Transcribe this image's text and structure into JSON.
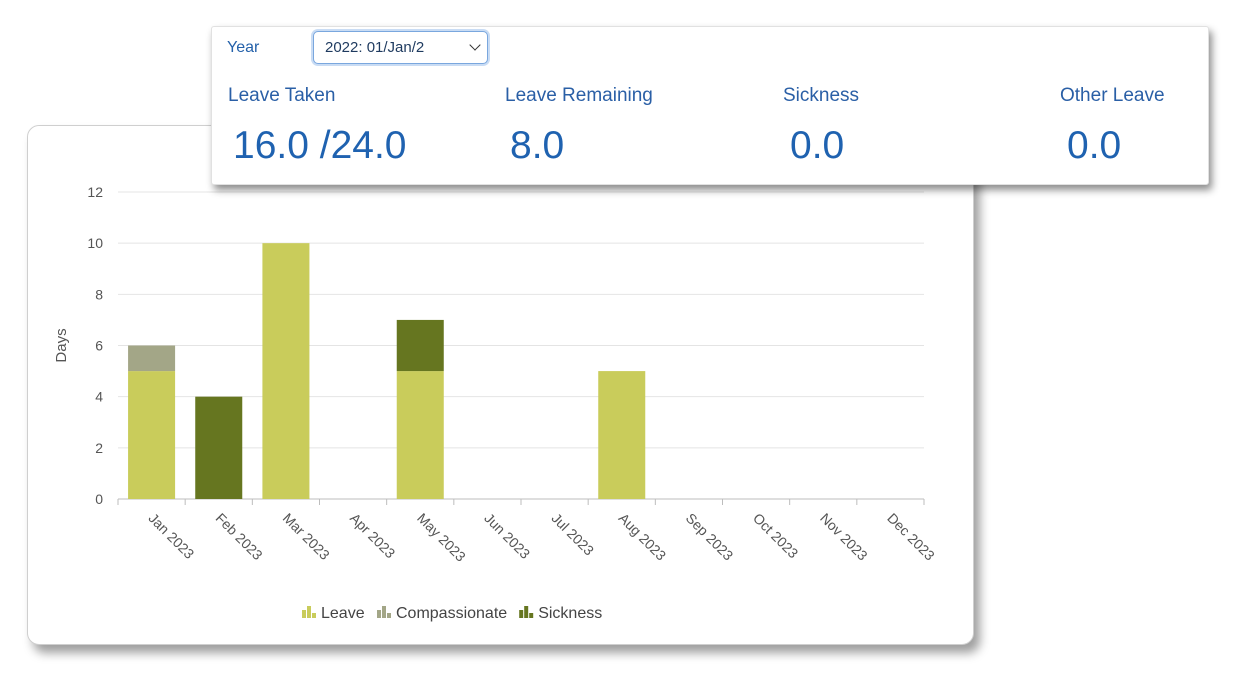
{
  "summary": {
    "year_label": "Year",
    "year_select_value": "2022: 01/Jan/2",
    "stats": [
      {
        "label": "Leave Taken",
        "value": "16.0 /24.0"
      },
      {
        "label": "Leave Remaining",
        "value": "8.0"
      },
      {
        "label": "Sickness",
        "value": "0.0"
      },
      {
        "label": "Other Leave",
        "value": "0.0"
      }
    ]
  },
  "chart_data": {
    "type": "bar",
    "stacked": true,
    "categories": [
      "Jan 2023",
      "Feb 2023",
      "Mar 2023",
      "Apr 2023",
      "May 2023",
      "Jun 2023",
      "Jul 2023",
      "Aug 2023",
      "Sep 2023",
      "Oct 2023",
      "Nov 2023",
      "Dec 2023"
    ],
    "series": [
      {
        "name": "Leave",
        "color": "#c9cc5b",
        "values": [
          5,
          0,
          10,
          0,
          5,
          0,
          0,
          5,
          0,
          0,
          0,
          0
        ]
      },
      {
        "name": "Compassionate",
        "color": "#a3a687",
        "values": [
          1,
          0,
          0,
          0,
          0,
          0,
          0,
          0,
          0,
          0,
          0,
          0
        ]
      },
      {
        "name": "Sickness",
        "color": "#667620",
        "values": [
          0,
          4,
          0,
          0,
          2,
          0,
          0,
          0,
          0,
          0,
          0,
          0
        ]
      }
    ],
    "ylabel": "Days",
    "ylim": [
      0,
      12
    ],
    "yticks": [
      0,
      2,
      4,
      6,
      8,
      10,
      12
    ],
    "grid": true,
    "legend_position": "bottom"
  }
}
